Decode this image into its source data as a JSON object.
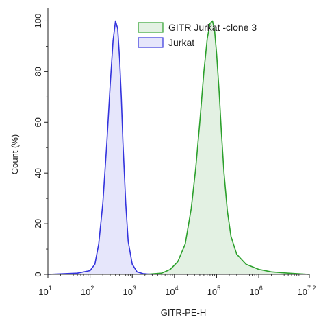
{
  "chart_data": {
    "type": "area",
    "title": "",
    "xlabel": "GITR-PE-H",
    "ylabel": "Count  (%)",
    "x_scale": "log",
    "xlim": [
      10,
      15848932
    ],
    "ylim": [
      0,
      105
    ],
    "x_ticks": [
      {
        "value": 10,
        "base": "10",
        "exp": "1"
      },
      {
        "value": 100,
        "base": "10",
        "exp": "2"
      },
      {
        "value": 1000,
        "base": "10",
        "exp": "3"
      },
      {
        "value": 10000,
        "base": "10",
        "exp": "4"
      },
      {
        "value": 100000,
        "base": "10",
        "exp": "5"
      },
      {
        "value": 1000000,
        "base": "10",
        "exp": "6"
      },
      {
        "value": 15848932,
        "base": "10",
        "exp": "7.2"
      }
    ],
    "y_ticks": [
      0,
      20,
      40,
      60,
      80,
      100
    ],
    "y_tick_labels": [
      "0",
      "20",
      "40",
      "60",
      "80",
      "100"
    ],
    "legend": {
      "position": "top-right"
    },
    "grid": false,
    "series": [
      {
        "name": "GITR Jurkat -clone 3",
        "color": "#2ca02c",
        "fill": "#e3f1e3",
        "x": [
          2000,
          5000,
          8000,
          12000,
          18000,
          25000,
          32000,
          40000,
          50000,
          60000,
          70000,
          80000,
          90000,
          100000,
          115000,
          130000,
          150000,
          180000,
          220000,
          300000,
          500000,
          1000000,
          2000000,
          5000000,
          15848932
        ],
        "y": [
          0,
          0.5,
          2,
          5,
          12,
          26,
          42,
          60,
          80,
          93,
          99,
          100,
          96,
          87,
          72,
          56,
          40,
          25,
          15,
          8,
          4,
          2,
          1,
          0.5,
          0
        ]
      },
      {
        "name": "Jurkat",
        "color": "#3333dd",
        "fill": "#e6e6fb",
        "x": [
          10,
          50,
          100,
          130,
          160,
          200,
          250,
          300,
          350,
          400,
          450,
          500,
          550,
          600,
          700,
          800,
          1000,
          1300,
          1800,
          3000
        ],
        "y": [
          0,
          0.5,
          1.5,
          4,
          12,
          28,
          52,
          75,
          92,
          100,
          97,
          85,
          70,
          52,
          28,
          13,
          4,
          1,
          0.3,
          0
        ]
      }
    ]
  }
}
